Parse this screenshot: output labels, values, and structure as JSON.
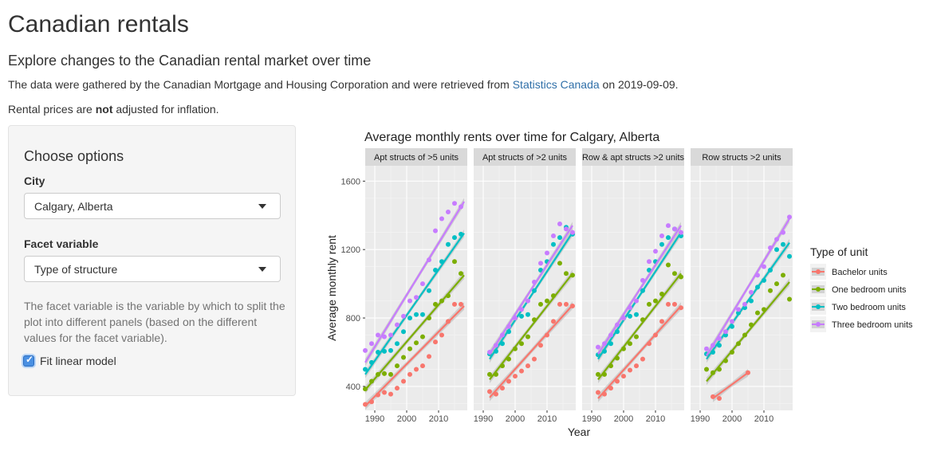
{
  "page": {
    "title": "Canadian rentals",
    "subtitle": "Explore changes to the Canadian rental market over time",
    "intro_before_link": "The data were gathered by the Canadian Mortgage and Housing Corporation and were retrieved from ",
    "intro_link": "Statistics Canada",
    "intro_after_link": " on 2019-09-09.",
    "note_before": "Rental prices are ",
    "note_bold": "not",
    "note_after": " adjusted for inflation."
  },
  "sidebar": {
    "title": "Choose options",
    "city_label": "City",
    "city_value": "Calgary, Alberta",
    "facet_label": "Facet variable",
    "facet_value": "Type of structure",
    "help_text": "The facet variable is the variable by which to split the plot into different panels (based on the different values for the facet variable).",
    "fit_label": "Fit linear model",
    "fit_checked": true
  },
  "chart_data": {
    "type": "scatter",
    "title": "Average monthly rents over time for Calgary, Alberta",
    "xlabel": "Year",
    "ylabel": "Average monthly rent",
    "xlim": [
      1987,
      2019
    ],
    "ylim": [
      260,
      1690
    ],
    "x_ticks": [
      1990,
      2000,
      2010
    ],
    "y_ticks": [
      400,
      800,
      1200,
      1600
    ],
    "grid": true,
    "trend_lines": true,
    "legend_position": "right",
    "legend_title": "Type of unit",
    "series_colors": {
      "Bachelor units": "#f8766d",
      "One bedroom units": "#7cae00",
      "Two bedroom units": "#00bfc4",
      "Three bedroom units": "#c77cff"
    },
    "facets": [
      {
        "label": "Apt structs of >5 units",
        "series": [
          {
            "name": "Bachelor units",
            "x": [
              1987,
              1989,
              1991,
              1993,
              1995,
              1997,
              1999,
              2001,
              2003,
              2005,
              2007,
              2009,
              2011,
              2013,
              2015,
              2017
            ],
            "y": [
              295,
              310,
              350,
              365,
              355,
              390,
              430,
              470,
              500,
              520,
              575,
              660,
              700,
              780,
              880,
              880
            ],
            "fit": [
              [
                1987,
                285
              ],
              [
                2018,
                870
              ]
            ]
          },
          {
            "name": "One bedroom units",
            "x": [
              1987,
              1989,
              1991,
              1993,
              1995,
              1997,
              1999,
              2001,
              2003,
              2005,
              2007,
              2009,
              2011,
              2013,
              2015,
              2017
            ],
            "y": [
              385,
              430,
              470,
              475,
              470,
              520,
              570,
              620,
              655,
              690,
              800,
              880,
              900,
              930,
              1130,
              1060
            ],
            "fit": [
              [
                1987,
                380
              ],
              [
                2018,
                1050
              ]
            ]
          },
          {
            "name": "Two bedroom units",
            "x": [
              1987,
              1989,
              1991,
              1993,
              1995,
              1997,
              1999,
              2001,
              2003,
              2005,
              2007,
              2009,
              2011,
              2013,
              2015,
              2017
            ],
            "y": [
              500,
              540,
              600,
              605,
              610,
              650,
              720,
              800,
              820,
              820,
              960,
              1080,
              1130,
              1230,
              1270,
              1290
            ],
            "fit": [
              [
                1987,
                470
              ],
              [
                2018,
                1295
              ]
            ]
          },
          {
            "name": "Three bedroom units",
            "x": [
              1987,
              1989,
              1991,
              1993,
              1995,
              1997,
              1999,
              2001,
              2003,
              2005,
              2007,
              2009,
              2011,
              2013,
              2015,
              2017
            ],
            "y": [
              610,
              650,
              700,
              690,
              700,
              760,
              810,
              900,
              920,
              1000,
              1140,
              1310,
              1380,
              1420,
              1470,
              1450
            ],
            "fit": [
              [
                1987,
                540
              ],
              [
                2018,
                1480
              ]
            ]
          }
        ]
      },
      {
        "label": "Apt structs of >2 units",
        "series": [
          {
            "name": "Bachelor units",
            "x": [
              1992,
              1994,
              1996,
              1998,
              2000,
              2002,
              2004,
              2006,
              2008,
              2010,
              2012,
              2014,
              2016,
              2018
            ],
            "y": [
              370,
              355,
              390,
              430,
              460,
              490,
              520,
              560,
              640,
              700,
              780,
              880,
              880,
              870
            ],
            "fit": [
              [
                1992,
                335
              ],
              [
                2018,
                875
              ]
            ]
          },
          {
            "name": "One bedroom units",
            "x": [
              1992,
              1994,
              1996,
              1998,
              2000,
              2002,
              2004,
              2006,
              2008,
              2010,
              2012,
              2014,
              2016,
              2018
            ],
            "y": [
              470,
              470,
              520,
              560,
              620,
              650,
              690,
              790,
              880,
              900,
              930,
              1120,
              1060,
              1050
            ],
            "fit": [
              [
                1992,
                440
              ],
              [
                2018,
                1060
              ]
            ]
          },
          {
            "name": "Two bedroom units",
            "x": [
              1992,
              1994,
              1996,
              1998,
              2000,
              2002,
              2004,
              2006,
              2008,
              2010,
              2012,
              2014,
              2016,
              2018
            ],
            "y": [
              590,
              605,
              650,
              720,
              800,
              810,
              820,
              960,
              1080,
              1130,
              1230,
              1270,
              1330,
              1290
            ],
            "fit": [
              [
                1992,
                560
              ],
              [
                2018,
                1300
              ]
            ]
          },
          {
            "name": "Three bedroom units",
            "x": [
              1992,
              1994,
              1996,
              1998,
              2000,
              2002,
              2004,
              2006,
              2008,
              2010,
              2012,
              2014,
              2016,
              2018
            ],
            "y": [
              600,
              640,
              700,
              750,
              800,
              850,
              900,
              1010,
              1120,
              1180,
              1280,
              1350,
              1320,
              1300
            ],
            "fit": [
              [
                1992,
                590
              ],
              [
                2018,
                1340
              ]
            ]
          }
        ]
      },
      {
        "label": "Row & apt structs >2 units",
        "series": [
          {
            "name": "Bachelor units",
            "x": [
              1992,
              1994,
              1996,
              1998,
              2000,
              2002,
              2004,
              2006,
              2008,
              2010,
              2012,
              2014,
              2016,
              2018
            ],
            "y": [
              365,
              355,
              390,
              430,
              460,
              495,
              520,
              560,
              650,
              700,
              780,
              880,
              880,
              860
            ],
            "fit": [
              [
                1992,
                330
              ],
              [
                2018,
                870
              ]
            ]
          },
          {
            "name": "One bedroom units",
            "x": [
              1992,
              1994,
              1996,
              1998,
              2000,
              2002,
              2004,
              2006,
              2008,
              2010,
              2012,
              2014,
              2016,
              2018
            ],
            "y": [
              470,
              470,
              520,
              565,
              620,
              650,
              690,
              790,
              880,
              900,
              940,
              1110,
              1060,
              1040
            ],
            "fit": [
              [
                1992,
                440
              ],
              [
                2018,
                1060
              ]
            ]
          },
          {
            "name": "Two bedroom units",
            "x": [
              1992,
              1994,
              1996,
              1998,
              2000,
              2002,
              2004,
              2006,
              2008,
              2010,
              2012,
              2014,
              2016,
              2018
            ],
            "y": [
              585,
              605,
              650,
              720,
              800,
              810,
              820,
              960,
              1080,
              1130,
              1230,
              1270,
              1320,
              1280
            ],
            "fit": [
              [
                1992,
                560
              ],
              [
                2018,
                1300
              ]
            ]
          },
          {
            "name": "Three bedroom units",
            "x": [
              1992,
              1994,
              1996,
              1998,
              2000,
              2002,
              2004,
              2006,
              2008,
              2010,
              2012,
              2014,
              2016,
              2018
            ],
            "y": [
              630,
              650,
              700,
              760,
              800,
              860,
              900,
              1020,
              1130,
              1190,
              1280,
              1340,
              1320,
              1300
            ],
            "fit": [
              [
                1992,
                590
              ],
              [
                2018,
                1340
              ]
            ]
          }
        ]
      },
      {
        "label": "Row structs >2 units",
        "series": [
          {
            "name": "Bachelor units",
            "x": [
              1994,
              1996,
              2005
            ],
            "y": [
              340,
              330,
              480
            ],
            "fit": [
              [
                1994,
                330
              ],
              [
                2005,
                480
              ]
            ]
          },
          {
            "name": "One bedroom units",
            "x": [
              1992,
              1994,
              1996,
              1998,
              2000,
              2002,
              2004,
              2006,
              2008,
              2010,
              2012,
              2014,
              2016,
              2018
            ],
            "y": [
              500,
              480,
              500,
              550,
              600,
              650,
              700,
              760,
              830,
              850,
              960,
              1000,
              1050,
              910
            ],
            "fit": [
              [
                1992,
                430
              ],
              [
                2018,
                1010
              ]
            ]
          },
          {
            "name": "Two bedroom units",
            "x": [
              1992,
              1994,
              1996,
              1998,
              2000,
              2002,
              2004,
              2006,
              2008,
              2010,
              2012,
              2014,
              2016,
              2018
            ],
            "y": [
              590,
              600,
              640,
              700,
              750,
              830,
              860,
              900,
              980,
              1020,
              1080,
              1200,
              1230,
              1160
            ],
            "fit": [
              [
                1992,
                560
              ],
              [
                2018,
                1240
              ]
            ]
          },
          {
            "name": "Three bedroom units",
            "x": [
              1992,
              1994,
              1996,
              1998,
              2000,
              2002,
              2004,
              2006,
              2008,
              2010,
              2012,
              2014,
              2016,
              2018
            ],
            "y": [
              620,
              640,
              680,
              720,
              780,
              850,
              880,
              950,
              1050,
              1100,
              1210,
              1260,
              1300,
              1390
            ],
            "fit": [
              [
                1992,
                580
              ],
              [
                2018,
                1380
              ]
            ]
          }
        ]
      }
    ]
  }
}
